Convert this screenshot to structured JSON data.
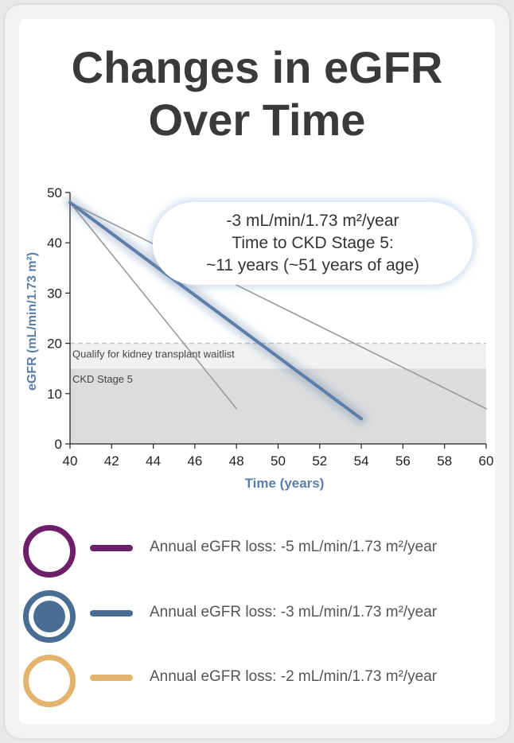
{
  "title_line1": "Changes in eGFR",
  "title_line2": "Over Time",
  "callout": {
    "line1": "-3 mL/min/1.73 m²/year",
    "line2": "Time to CKD Stage 5:",
    "line3": "~11 years (~51 years of age)"
  },
  "legend": [
    {
      "label": "Annual eGFR loss: -5 mL/min/1.73 m²/year",
      "color": "#6d1f6a",
      "filled": false
    },
    {
      "label": "Annual eGFR loss: -3 mL/min/1.73 m²/year",
      "color": "#4a6d94",
      "filled": true
    },
    {
      "label": "Annual eGFR loss: -2 mL/min/1.73 m²/year",
      "color": "#e3b46e",
      "filled": false
    }
  ],
  "chart_data": {
    "type": "line",
    "xlabel": "Time (years)",
    "ylabel": "eGFR (mL/min/1.73 m²)",
    "xlim": [
      40,
      60
    ],
    "ylim": [
      0,
      50
    ],
    "xticks": [
      40,
      42,
      44,
      46,
      48,
      50,
      52,
      54,
      56,
      58,
      60
    ],
    "yticks": [
      0,
      10,
      20,
      30,
      40,
      50
    ],
    "bands": [
      {
        "label": "Qualify for kidney transplant waitlist",
        "y0": 15,
        "y1": 20,
        "color": "#f1f1f1"
      },
      {
        "label": "CKD Stage 5",
        "y0": 0,
        "y1": 15,
        "color": "#dcdcdd"
      }
    ],
    "threshold_line": 20,
    "series": [
      {
        "x": [
          40,
          48
        ],
        "y": [
          48,
          7
        ],
        "color": "#9a9a9a",
        "width": 1.6,
        "highlight": false
      },
      {
        "x": [
          40,
          60
        ],
        "y": [
          48,
          7
        ],
        "color": "#9a9a9a",
        "width": 1.6,
        "highlight": false
      },
      {
        "x": [
          40,
          54
        ],
        "y": [
          48,
          5
        ],
        "color": "#5e7ea8",
        "width": 4,
        "highlight": true
      }
    ],
    "axis_label_color": "#5a7fa8",
    "grid": false
  }
}
